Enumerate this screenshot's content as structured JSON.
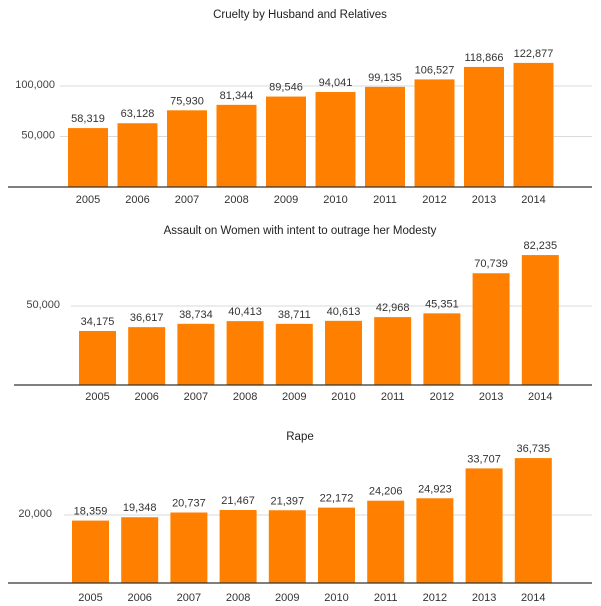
{
  "chart_data": [
    {
      "type": "bar",
      "title": "Cruelty by Husband and Relatives",
      "categories": [
        "2005",
        "2006",
        "2007",
        "2008",
        "2009",
        "2010",
        "2011",
        "2012",
        "2013",
        "2014"
      ],
      "values": [
        58319,
        63128,
        75930,
        81344,
        89546,
        94041,
        99135,
        106527,
        118866,
        122877
      ],
      "value_labels": [
        "58,319",
        "63,128",
        "75,930",
        "81,344",
        "89,546",
        "94,041",
        "99,135",
        "106,527",
        "118,866",
        "122,877"
      ],
      "yticks": [
        50000,
        100000
      ],
      "ytick_labels": [
        "50,000",
        "100,000"
      ],
      "ylim": [
        0,
        140000
      ],
      "grid": true,
      "color": "#ff8000"
    },
    {
      "type": "bar",
      "title": "Assault on Women with intent to outrage her Modesty",
      "categories": [
        "2005",
        "2006",
        "2007",
        "2008",
        "2009",
        "2010",
        "2011",
        "2012",
        "2013",
        "2014"
      ],
      "values": [
        34175,
        36617,
        38734,
        40413,
        38711,
        40613,
        42968,
        45351,
        70739,
        82235
      ],
      "value_labels": [
        "34,175",
        "36,617",
        "38,734",
        "40,413",
        "38,711",
        "40,613",
        "42,968",
        "45,351",
        "70,739",
        "82,235"
      ],
      "yticks": [
        50000
      ],
      "ytick_labels": [
        "50,000"
      ],
      "ylim": [
        0,
        98000
      ],
      "grid": true,
      "color": "#ff8000"
    },
    {
      "type": "bar",
      "title": "Rape",
      "categories": [
        "2005",
        "2006",
        "2007",
        "2008",
        "2009",
        "2010",
        "2011",
        "2012",
        "2013",
        "2014"
      ],
      "values": [
        18359,
        19348,
        20737,
        21467,
        21397,
        22172,
        24206,
        24923,
        33707,
        36735
      ],
      "value_labels": [
        "18,359",
        "19,348",
        "20,737",
        "21,467",
        "21,397",
        "22,172",
        "24,206",
        "24,923",
        "33,707",
        "36,735"
      ],
      "yticks": [
        20000
      ],
      "ytick_labels": [
        "20,000"
      ],
      "ylim": [
        0,
        44000
      ],
      "grid": true,
      "color": "#ff8000"
    }
  ]
}
